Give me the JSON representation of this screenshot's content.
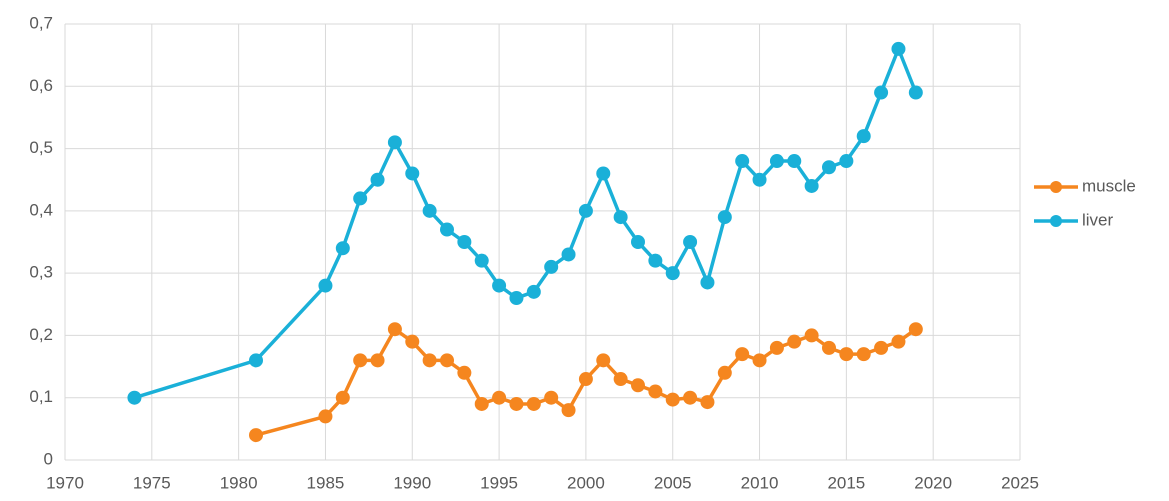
{
  "chart_data": {
    "type": "line",
    "series": [
      {
        "name": "muscle",
        "color": "#f5861f",
        "x": [
          1981,
          1985,
          1986,
          1987,
          1988,
          1989,
          1990,
          1991,
          1992,
          1993,
          1994,
          1995,
          1996,
          1997,
          1998,
          1999,
          2000,
          2001,
          2002,
          2003,
          2004,
          2005,
          2006,
          2007,
          2008,
          2009,
          2010,
          2011,
          2012,
          2013,
          2014,
          2015,
          2016,
          2017,
          2018,
          2019
        ],
        "values": [
          0.04,
          0.07,
          0.1,
          0.16,
          0.16,
          0.21,
          0.19,
          0.16,
          0.16,
          0.14,
          0.09,
          0.1,
          0.09,
          0.09,
          0.1,
          0.08,
          0.13,
          0.16,
          0.13,
          0.12,
          0.11,
          0.097,
          0.1,
          0.093,
          0.14,
          0.17,
          0.16,
          0.18,
          0.19,
          0.2,
          0.18,
          0.17,
          0.17,
          0.18,
          0.19,
          0.21
        ]
      },
      {
        "name": "liver",
        "color": "#1ab0d8",
        "x": [
          1974,
          1981,
          1985,
          1986,
          1987,
          1988,
          1989,
          1990,
          1991,
          1992,
          1993,
          1994,
          1995,
          1996,
          1997,
          1998,
          1999,
          2000,
          2001,
          2002,
          2003,
          2004,
          2005,
          2006,
          2007,
          2008,
          2009,
          2010,
          2011,
          2012,
          2013,
          2014,
          2015,
          2016,
          2017,
          2018,
          2019
        ],
        "values": [
          0.1,
          0.16,
          0.28,
          0.34,
          0.42,
          0.45,
          0.51,
          0.46,
          0.4,
          0.37,
          0.35,
          0.32,
          0.28,
          0.26,
          0.27,
          0.31,
          0.33,
          0.4,
          0.46,
          0.39,
          0.35,
          0.32,
          0.3,
          0.35,
          0.285,
          0.39,
          0.48,
          0.45,
          0.48,
          0.48,
          0.44,
          0.47,
          0.48,
          0.52,
          0.59,
          0.66,
          0.59
        ]
      }
    ],
    "xlim": [
      1970,
      2025
    ],
    "xticks": [
      1970,
      1975,
      1980,
      1985,
      1990,
      1995,
      2000,
      2005,
      2010,
      2015,
      2020,
      2025
    ],
    "ylim": [
      0,
      0.7
    ],
    "yticks": [
      0,
      {
        "value": 0.1,
        "label": "0,1"
      },
      {
        "value": 0.2,
        "label": "0,2"
      },
      {
        "value": 0.3,
        "label": "0,3"
      },
      {
        "value": 0.4,
        "label": "0,4"
      },
      {
        "value": 0.5,
        "label": "0,5"
      },
      {
        "value": 0.6,
        "label": "0,6"
      },
      {
        "value": 0.7,
        "label": "0,7"
      }
    ],
    "grid": true,
    "legend": "right"
  }
}
